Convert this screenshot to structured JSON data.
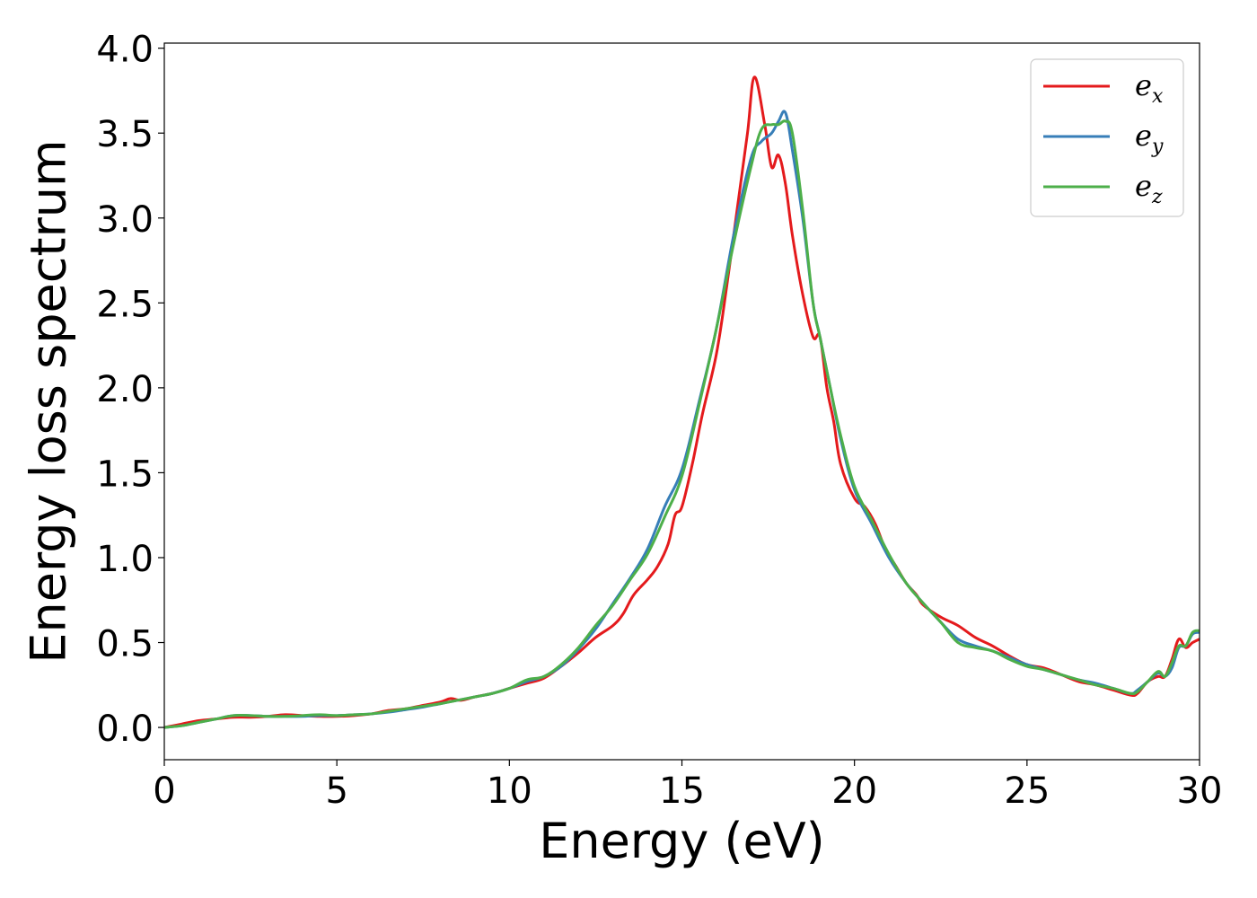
{
  "chart_data": {
    "type": "line",
    "xlabel": "Energy (eV)",
    "ylabel": "Energy loss spectrum",
    "xlim": [
      0,
      30
    ],
    "ylim": [
      -0.19,
      4.03
    ],
    "xticks": [
      0,
      5,
      10,
      15,
      20,
      25,
      30
    ],
    "yticks": [
      0.0,
      0.5,
      1.0,
      1.5,
      2.0,
      2.5,
      3.0,
      3.5,
      4.0
    ],
    "xtick_labels": [
      "0",
      "5",
      "10",
      "15",
      "20",
      "25",
      "30"
    ],
    "ytick_labels": [
      "0.0",
      "0.5",
      "1.0",
      "1.5",
      "2.0",
      "2.5",
      "3.0",
      "3.5",
      "4.0"
    ],
    "grid": false,
    "legend_position": "top-right",
    "series": [
      {
        "name": "e_x",
        "label_base": "e",
        "label_sub": "x",
        "color": "#e41a1c",
        "x": [
          0,
          0.5,
          1,
          1.5,
          2,
          2.5,
          3,
          3.5,
          4,
          4.5,
          5,
          5.5,
          6,
          6.5,
          7,
          7.5,
          8,
          8.3,
          8.6,
          9,
          9.5,
          10,
          10.5,
          11,
          11.5,
          12,
          12.5,
          13,
          13.3,
          13.6,
          14,
          14.3,
          14.6,
          14.8,
          15,
          15.3,
          15.6,
          16,
          16.3,
          16.6,
          16.9,
          17.1,
          17.4,
          17.6,
          17.8,
          18,
          18.2,
          18.5,
          18.8,
          19,
          19.2,
          19.4,
          19.6,
          20,
          20.3,
          20.6,
          20.9,
          21.2,
          21.5,
          21.8,
          22,
          22.5,
          23,
          23.5,
          24,
          24.5,
          25,
          25.5,
          26,
          26.5,
          27,
          27.5,
          28,
          28.2,
          28.5,
          28.8,
          29,
          29.2,
          29.4,
          29.6,
          29.8,
          30
        ],
        "y": [
          0.0,
          0.02,
          0.04,
          0.05,
          0.06,
          0.06,
          0.065,
          0.075,
          0.07,
          0.065,
          0.065,
          0.07,
          0.08,
          0.1,
          0.11,
          0.13,
          0.15,
          0.17,
          0.16,
          0.18,
          0.2,
          0.23,
          0.26,
          0.29,
          0.36,
          0.44,
          0.53,
          0.6,
          0.67,
          0.78,
          0.87,
          0.95,
          1.08,
          1.25,
          1.3,
          1.55,
          1.85,
          2.2,
          2.6,
          3.05,
          3.5,
          3.83,
          3.55,
          3.3,
          3.37,
          3.2,
          2.9,
          2.55,
          2.3,
          2.3,
          2.0,
          1.8,
          1.55,
          1.35,
          1.3,
          1.2,
          1.05,
          0.95,
          0.85,
          0.78,
          0.72,
          0.65,
          0.6,
          0.53,
          0.48,
          0.42,
          0.37,
          0.35,
          0.31,
          0.27,
          0.25,
          0.22,
          0.19,
          0.2,
          0.27,
          0.3,
          0.3,
          0.4,
          0.52,
          0.47,
          0.5,
          0.52
        ]
      },
      {
        "name": "e_y",
        "label_base": "e",
        "label_sub": "y",
        "color": "#377eb8",
        "x": [
          0,
          0.5,
          1,
          1.5,
          2,
          2.5,
          3,
          3.5,
          4,
          4.5,
          5,
          5.5,
          6,
          6.5,
          7,
          7.5,
          8,
          8.5,
          9,
          9.5,
          10,
          10.5,
          11,
          11.5,
          12,
          12.5,
          13,
          13.5,
          14,
          14.5,
          15,
          15.5,
          16,
          16.5,
          17,
          17.3,
          17.6,
          17.8,
          18,
          18.2,
          18.5,
          18.8,
          19,
          19.3,
          19.6,
          20,
          20.5,
          21,
          21.5,
          22,
          22.5,
          23,
          23.5,
          24,
          24.5,
          25,
          25.5,
          26,
          26.5,
          27,
          27.5,
          28,
          28.2,
          28.5,
          28.8,
          29,
          29.2,
          29.4,
          29.6,
          29.8,
          30
        ],
        "y": [
          0.0,
          0.01,
          0.03,
          0.05,
          0.07,
          0.07,
          0.065,
          0.065,
          0.065,
          0.07,
          0.07,
          0.075,
          0.08,
          0.09,
          0.105,
          0.12,
          0.14,
          0.16,
          0.18,
          0.2,
          0.23,
          0.27,
          0.3,
          0.36,
          0.46,
          0.58,
          0.73,
          0.88,
          1.05,
          1.3,
          1.52,
          1.92,
          2.35,
          2.9,
          3.35,
          3.45,
          3.5,
          3.57,
          3.62,
          3.4,
          3.0,
          2.5,
          2.3,
          2.0,
          1.7,
          1.4,
          1.2,
          1.0,
          0.85,
          0.73,
          0.62,
          0.52,
          0.48,
          0.45,
          0.41,
          0.37,
          0.34,
          0.31,
          0.28,
          0.26,
          0.23,
          0.2,
          0.22,
          0.27,
          0.32,
          0.3,
          0.35,
          0.47,
          0.48,
          0.55,
          0.56
        ]
      },
      {
        "name": "e_z",
        "label_base": "e",
        "label_sub": "z",
        "color": "#4daf4a",
        "x": [
          0,
          0.5,
          1,
          1.5,
          2,
          2.5,
          3,
          3.5,
          4,
          4.5,
          5,
          5.5,
          6,
          6.5,
          7,
          7.5,
          8,
          8.5,
          9,
          9.5,
          10,
          10.5,
          11,
          11.5,
          12,
          12.5,
          13,
          13.5,
          14,
          14.5,
          15,
          15.5,
          16,
          16.5,
          17,
          17.3,
          17.6,
          17.8,
          18,
          18.2,
          18.5,
          18.8,
          19,
          19.3,
          19.6,
          20,
          20.5,
          21,
          21.5,
          22,
          22.5,
          23,
          23.5,
          24,
          24.5,
          25,
          25.5,
          26,
          26.5,
          27,
          27.5,
          28,
          28.2,
          28.5,
          28.8,
          29,
          29.2,
          29.4,
          29.6,
          29.8,
          30
        ],
        "y": [
          0.0,
          0.01,
          0.03,
          0.05,
          0.07,
          0.07,
          0.065,
          0.065,
          0.07,
          0.075,
          0.07,
          0.075,
          0.08,
          0.095,
          0.11,
          0.125,
          0.14,
          0.16,
          0.18,
          0.2,
          0.23,
          0.28,
          0.3,
          0.37,
          0.47,
          0.6,
          0.72,
          0.87,
          1.02,
          1.24,
          1.48,
          1.9,
          2.35,
          2.85,
          3.3,
          3.52,
          3.55,
          3.55,
          3.57,
          3.5,
          3.05,
          2.5,
          2.3,
          2.0,
          1.72,
          1.42,
          1.22,
          1.02,
          0.85,
          0.73,
          0.62,
          0.5,
          0.47,
          0.45,
          0.4,
          0.36,
          0.34,
          0.31,
          0.28,
          0.25,
          0.23,
          0.2,
          0.21,
          0.27,
          0.33,
          0.3,
          0.38,
          0.48,
          0.48,
          0.56,
          0.57
        ]
      }
    ]
  }
}
